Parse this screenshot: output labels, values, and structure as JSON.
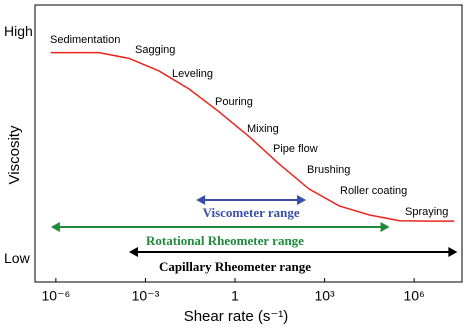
{
  "chart_data": {
    "type": "line",
    "xlabel": "Shear rate (s⁻¹)",
    "ylabel": "Viscosity",
    "xscale": "log",
    "xlim": [
      2e-07,
      40000000.0
    ],
    "xticks": [
      {
        "value": 1e-06,
        "label": "10⁻⁶"
      },
      {
        "value": 0.001,
        "label": "10⁻³"
      },
      1,
      {
        "value": 1000,
        "label": "10³"
      },
      {
        "value": 1000000,
        "label": "10⁶"
      }
    ],
    "ylim": [
      -0.1,
      1.12
    ],
    "yticks": [
      {
        "value": 1,
        "label": "High"
      },
      {
        "value": 0,
        "label": "Low"
      }
    ],
    "x": [
      6.8e-07,
      2.8e-05,
      0.00028,
      0.0028,
      0.029,
      0.29,
      3,
      30,
      300,
      3100,
      32000,
      320000,
      3200000,
      22000000
    ],
    "series": [
      {
        "color": "#e8261e",
        "values": [
          0.91,
          0.91,
          0.885,
          0.83,
          0.75,
          0.65,
          0.54,
          0.42,
          0.31,
          0.235,
          0.195,
          0.17,
          0.168,
          0.168
        ]
      }
    ],
    "annotations": [
      "Sedimentation",
      "Sagging",
      "Leveling",
      "Pouring",
      "Mixing",
      "Pipe flow",
      "Brushing",
      "Roller coating",
      "Spraying"
    ],
    "ranges": [
      {
        "name": "Viscometer range",
        "color": "#3a4fa8",
        "from": 0.05,
        "to": 240
      },
      {
        "name": "Rotational Rheometer range",
        "color": "#1e8a3a",
        "from": 6.8e-07,
        "to": 150000
      },
      {
        "name": "Capillary Rheometer range",
        "color": "#000000",
        "from": 0.00028,
        "to": 28000000
      }
    ]
  }
}
